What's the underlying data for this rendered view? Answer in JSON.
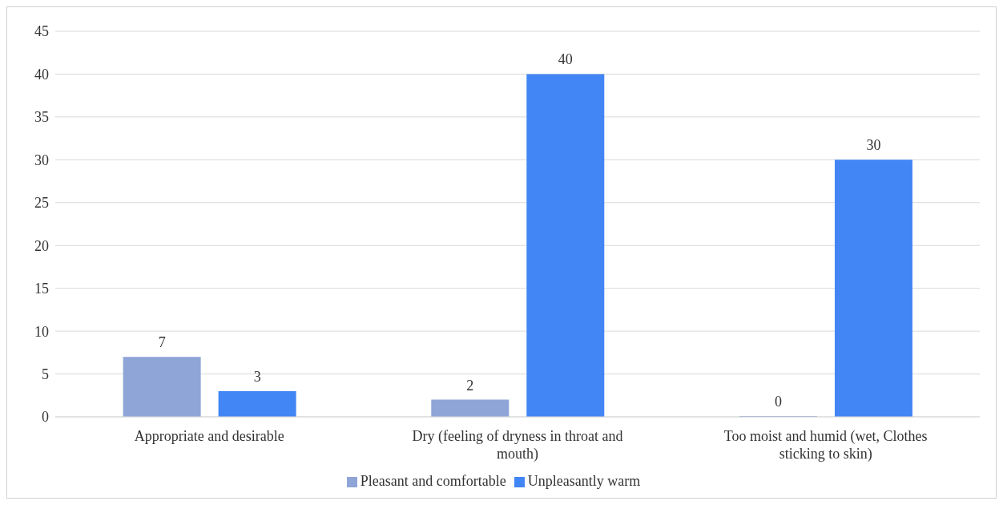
{
  "chart_data": {
    "type": "bar",
    "categories": [
      "Appropriate and desirable",
      "Dry (feeling of dryness in throat and mouth)",
      "Too moist and humid (wet, Clothes sticking to skin)"
    ],
    "series": [
      {
        "name": "Pleasant and comfortable",
        "color": "#8fa5d8",
        "values": [
          7,
          2,
          0
        ]
      },
      {
        "name": "Unpleasantly warm",
        "color": "#4285f4",
        "values": [
          3,
          40,
          30
        ]
      }
    ],
    "ylim": [
      0,
      45
    ],
    "yticks": [
      0,
      5,
      10,
      15,
      20,
      25,
      30,
      35,
      40,
      45
    ],
    "grid": "y",
    "legend": "bottom",
    "data_labels": true
  }
}
